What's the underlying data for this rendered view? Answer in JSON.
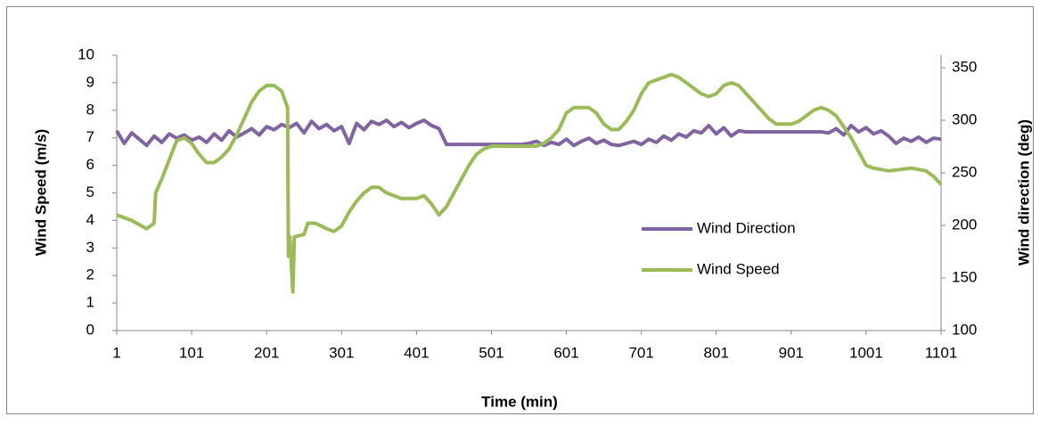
{
  "chart_data": {
    "type": "line",
    "x_label": "Time (min)",
    "y_label": "Wind Speed (m/s)",
    "y2_label": "Wind direction (deg)",
    "xlim": [
      1,
      1101
    ],
    "xticks": [
      1,
      101,
      201,
      301,
      401,
      501,
      601,
      701,
      801,
      901,
      1001,
      1101
    ],
    "ylim": [
      0,
      10
    ],
    "yticks": [
      0,
      1,
      2,
      3,
      4,
      5,
      6,
      7,
      8,
      9,
      10
    ],
    "y2lim": [
      100,
      350
    ],
    "y2ticks": [
      100,
      150,
      200,
      250,
      300,
      350
    ],
    "legend": "right",
    "series": [
      {
        "name": "Wind Direction",
        "color": "#8064a2",
        "axis": "y2",
        "x": [
          1,
          11,
          21,
          31,
          41,
          51,
          61,
          71,
          81,
          91,
          101,
          111,
          121,
          131,
          141,
          151,
          161,
          171,
          181,
          191,
          201,
          211,
          221,
          231,
          241,
          251,
          261,
          271,
          281,
          291,
          301,
          311,
          321,
          331,
          341,
          351,
          361,
          371,
          381,
          391,
          401,
          411,
          421,
          431,
          441,
          451,
          461,
          471,
          481,
          491,
          501,
          511,
          521,
          531,
          541,
          551,
          561,
          571,
          581,
          591,
          601,
          611,
          621,
          631,
          641,
          651,
          661,
          671,
          681,
          691,
          701,
          711,
          721,
          731,
          741,
          751,
          761,
          771,
          781,
          791,
          801,
          811,
          821,
          831,
          841,
          851,
          861,
          871,
          881,
          891,
          901,
          911,
          921,
          931,
          941,
          951,
          961,
          971,
          981,
          991,
          1001,
          1011,
          1021,
          1031,
          1041,
          1051,
          1061,
          1071,
          1081,
          1091,
          1101
        ],
        "values": [
          290,
          278,
          288,
          282,
          276,
          285,
          279,
          287,
          283,
          286,
          281,
          284,
          279,
          287,
          281,
          290,
          284,
          288,
          292,
          286,
          294,
          291,
          296,
          293,
          297,
          288,
          299,
          292,
          296,
          290,
          294,
          278,
          297,
          291,
          299,
          296,
          300,
          294,
          298,
          293,
          297,
          300,
          295,
          292,
          277,
          277,
          277,
          277,
          277,
          277,
          277,
          277,
          277,
          277,
          277,
          278,
          280,
          276,
          279,
          277,
          282,
          276,
          280,
          283,
          278,
          281,
          277,
          276,
          278,
          280,
          277,
          282,
          279,
          285,
          281,
          287,
          284,
          290,
          288,
          295,
          287,
          293,
          285,
          290,
          289,
          289,
          289,
          289,
          289,
          289,
          289,
          289,
          289,
          289,
          289,
          288,
          292,
          286,
          295,
          289,
          293,
          287,
          290,
          285,
          278,
          283,
          280,
          284,
          279,
          283,
          282
        ]
      },
      {
        "name": "Wind Speed",
        "color": "#9bbb59",
        "axis": "y",
        "x": [
          1,
          21,
          41,
          51,
          53,
          61,
          71,
          81,
          91,
          101,
          111,
          121,
          131,
          141,
          151,
          161,
          171,
          181,
          191,
          201,
          211,
          221,
          229,
          230,
          232,
          236,
          238,
          251,
          256,
          266,
          281,
          291,
          301,
          311,
          321,
          331,
          341,
          351,
          361,
          381,
          401,
          411,
          421,
          431,
          441,
          451,
          461,
          471,
          481,
          491,
          501,
          561,
          571,
          581,
          591,
          601,
          611,
          631,
          641,
          651,
          661,
          671,
          681,
          691,
          701,
          711,
          721,
          731,
          741,
          751,
          761,
          771,
          781,
          791,
          801,
          811,
          821,
          831,
          841,
          851,
          861,
          871,
          881,
          901,
          911,
          921,
          931,
          941,
          951,
          961,
          971,
          981,
          991,
          1001,
          1011,
          1031,
          1061,
          1081,
          1091,
          1101
        ],
        "values": [
          4.2,
          4.0,
          3.7,
          3.9,
          5.0,
          5.5,
          6.2,
          6.9,
          7.0,
          6.8,
          6.4,
          6.1,
          6.1,
          6.3,
          6.6,
          7.1,
          7.7,
          8.3,
          8.7,
          8.9,
          8.9,
          8.7,
          8.1,
          2.7,
          3.4,
          1.4,
          3.4,
          3.5,
          3.9,
          3.9,
          3.7,
          3.6,
          3.8,
          4.3,
          4.7,
          5.0,
          5.2,
          5.2,
          5.0,
          4.8,
          4.8,
          4.9,
          4.6,
          4.2,
          4.5,
          5.0,
          5.5,
          6.0,
          6.4,
          6.6,
          6.7,
          6.7,
          6.8,
          7.0,
          7.3,
          7.9,
          8.1,
          8.1,
          7.9,
          7.5,
          7.3,
          7.3,
          7.6,
          8.0,
          8.6,
          9.0,
          9.1,
          9.2,
          9.3,
          9.2,
          9.0,
          8.8,
          8.6,
          8.5,
          8.6,
          8.9,
          9.0,
          8.9,
          8.6,
          8.3,
          8.0,
          7.7,
          7.5,
          7.5,
          7.6,
          7.8,
          8.0,
          8.1,
          8.0,
          7.8,
          7.4,
          7.0,
          6.5,
          6.0,
          5.9,
          5.8,
          5.9,
          5.8,
          5.6,
          5.3
        ]
      }
    ]
  }
}
